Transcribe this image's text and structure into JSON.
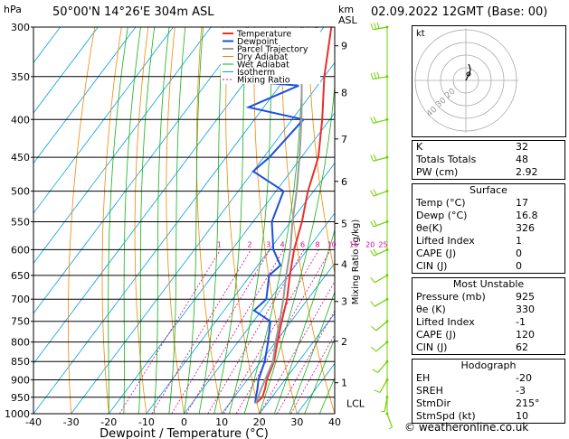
{
  "header": {
    "location": "50°00'N  14°26'E  304m  ASL",
    "datetime": "02.09.2022  12GMT  (Base: 00)"
  },
  "chart_data": {
    "type": "line",
    "title": "",
    "xlabel": "Dewpoint / Temperature (°C)",
    "ylabel": "hPa",
    "y_units_label": "hPa",
    "km_label": "km\nASL",
    "mixing_axis_label": "Mixing Ratio (g/kg)",
    "pressure_levels": [
      300,
      350,
      400,
      450,
      500,
      550,
      600,
      650,
      700,
      750,
      800,
      850,
      900,
      950,
      1000
    ],
    "x_ticks": [
      -40,
      -30,
      -20,
      -10,
      0,
      10,
      20,
      30,
      40
    ],
    "km_ticks": [
      {
        "km": "1",
        "p": 908
      },
      {
        "km": "2",
        "p": 798
      },
      {
        "km": "3",
        "p": 705
      },
      {
        "km": "4",
        "p": 628
      },
      {
        "km": "5",
        "p": 553
      },
      {
        "km": "6",
        "p": 485
      },
      {
        "km": "7",
        "p": 425
      },
      {
        "km": "8",
        "p": 368
      },
      {
        "km": "9",
        "p": 318
      }
    ],
    "lcl_label": "LCL",
    "lcl_p": 968,
    "mixing_ratio_labels": [
      "1",
      "2",
      "3",
      "4",
      "6",
      "8",
      "10",
      "15",
      "20",
      "25"
    ],
    "legend": [
      "Temperature",
      "Dewpoint",
      "Parcel Trajectory",
      "Dry Adiabat",
      "Wet Adiabat",
      "Isotherm",
      "Mixing Ratio"
    ],
    "legend_placement": "top-right",
    "colors": {
      "temperature": "#e8302a",
      "dewpoint": "#1d4fe0",
      "parcel": "#9a9a9a",
      "dry_adiabat": "#f08a00",
      "wet_adiabat": "#18b018",
      "isotherm": "#00a0e0",
      "mixing_ratio": "#e000a0",
      "wind": "#70d000"
    },
    "series": [
      {
        "name": "Temperature",
        "points": [
          [
            17.0,
            968
          ],
          [
            17.5,
            950
          ],
          [
            16.5,
            925
          ],
          [
            15.2,
            900
          ],
          [
            13.5,
            850
          ],
          [
            10.5,
            800
          ],
          [
            7.5,
            750
          ],
          [
            4.5,
            700
          ],
          [
            0.5,
            650
          ],
          [
            -3.5,
            600
          ],
          [
            -7.0,
            550
          ],
          [
            -11.5,
            500
          ],
          [
            -15.5,
            450
          ],
          [
            -22.0,
            400
          ],
          [
            -30.0,
            350
          ],
          [
            -38.0,
            300
          ]
        ]
      },
      {
        "name": "Dewpoint",
        "points": [
          [
            16.8,
            968
          ],
          [
            15.8,
            950
          ],
          [
            14.5,
            925
          ],
          [
            13.0,
            900
          ],
          [
            11.0,
            850
          ],
          [
            8.0,
            800
          ],
          [
            4.5,
            750
          ],
          [
            -2.0,
            725
          ],
          [
            -1.0,
            700
          ],
          [
            -5.0,
            650
          ],
          [
            -4.0,
            630
          ],
          [
            -9.0,
            600
          ],
          [
            -15.0,
            550
          ],
          [
            -18.0,
            500
          ],
          [
            -30.0,
            470
          ],
          [
            -28.5,
            450
          ],
          [
            -27.0,
            400
          ],
          [
            -44.0,
            385
          ],
          [
            -35.0,
            360
          ],
          [
            -50.0,
            355
          ],
          [
            -44.0,
            345
          ],
          [
            -40.0,
            310
          ],
          [
            -42.0,
            300
          ]
        ]
      },
      {
        "name": "Parcel Trajectory",
        "points": [
          [
            17.0,
            968
          ],
          [
            15.5,
            925
          ],
          [
            13.2,
            850
          ],
          [
            10.0,
            800
          ],
          [
            7.0,
            750
          ],
          [
            3.5,
            700
          ],
          [
            -0.5,
            650
          ],
          [
            -4.5,
            600
          ],
          [
            -9.5,
            550
          ],
          [
            -14.5,
            500
          ],
          [
            -20.5,
            450
          ],
          [
            -27.5,
            400
          ],
          [
            -36.0,
            350
          ],
          [
            -46.0,
            300
          ]
        ]
      }
    ],
    "winds": [
      [
        1000,
        160,
        5
      ],
      [
        950,
        190,
        8
      ],
      [
        900,
        210,
        10
      ],
      [
        850,
        220,
        10
      ],
      [
        800,
        230,
        10
      ],
      [
        750,
        230,
        10
      ],
      [
        700,
        240,
        12
      ],
      [
        650,
        240,
        12
      ],
      [
        600,
        245,
        15
      ],
      [
        550,
        250,
        18
      ],
      [
        500,
        250,
        18
      ],
      [
        450,
        255,
        20
      ],
      [
        400,
        255,
        22
      ],
      [
        350,
        260,
        25
      ],
      [
        300,
        260,
        28
      ]
    ],
    "hodograph": {
      "label": "kt",
      "ring_labels": [
        "20",
        "30",
        "40"
      ],
      "points": [
        [
          0,
          0
        ],
        [
          2,
          4
        ],
        [
          4,
          8
        ],
        [
          5,
          12
        ],
        [
          4,
          16
        ],
        [
          3,
          18
        ]
      ]
    }
  },
  "indices": {
    "K": "32",
    "Totals Totals": "48",
    "PW (cm)": "2.92"
  },
  "surface": {
    "title": "Surface",
    "rows": [
      [
        "Temp (°C)",
        "17"
      ],
      [
        "Dewp (°C)",
        "16.8"
      ],
      [
        "θe(K)",
        "326"
      ],
      [
        "Lifted Index",
        "1"
      ],
      [
        "CAPE (J)",
        "0"
      ],
      [
        "CIN (J)",
        "0"
      ]
    ]
  },
  "most_unstable": {
    "title": "Most Unstable",
    "rows": [
      [
        "Pressure (mb)",
        "925"
      ],
      [
        "θe (K)",
        "330"
      ],
      [
        "Lifted Index",
        "-1"
      ],
      [
        "CAPE (J)",
        "120"
      ],
      [
        "CIN (J)",
        "62"
      ]
    ]
  },
  "hodograph_box": {
    "title": "Hodograph",
    "rows": [
      [
        "EH",
        "-20"
      ],
      [
        "SREH",
        "-3"
      ],
      [
        "StmDir",
        "215°"
      ],
      [
        "StmSpd (kt)",
        "10"
      ]
    ]
  },
  "copyright": "© weatheronline.co.uk"
}
